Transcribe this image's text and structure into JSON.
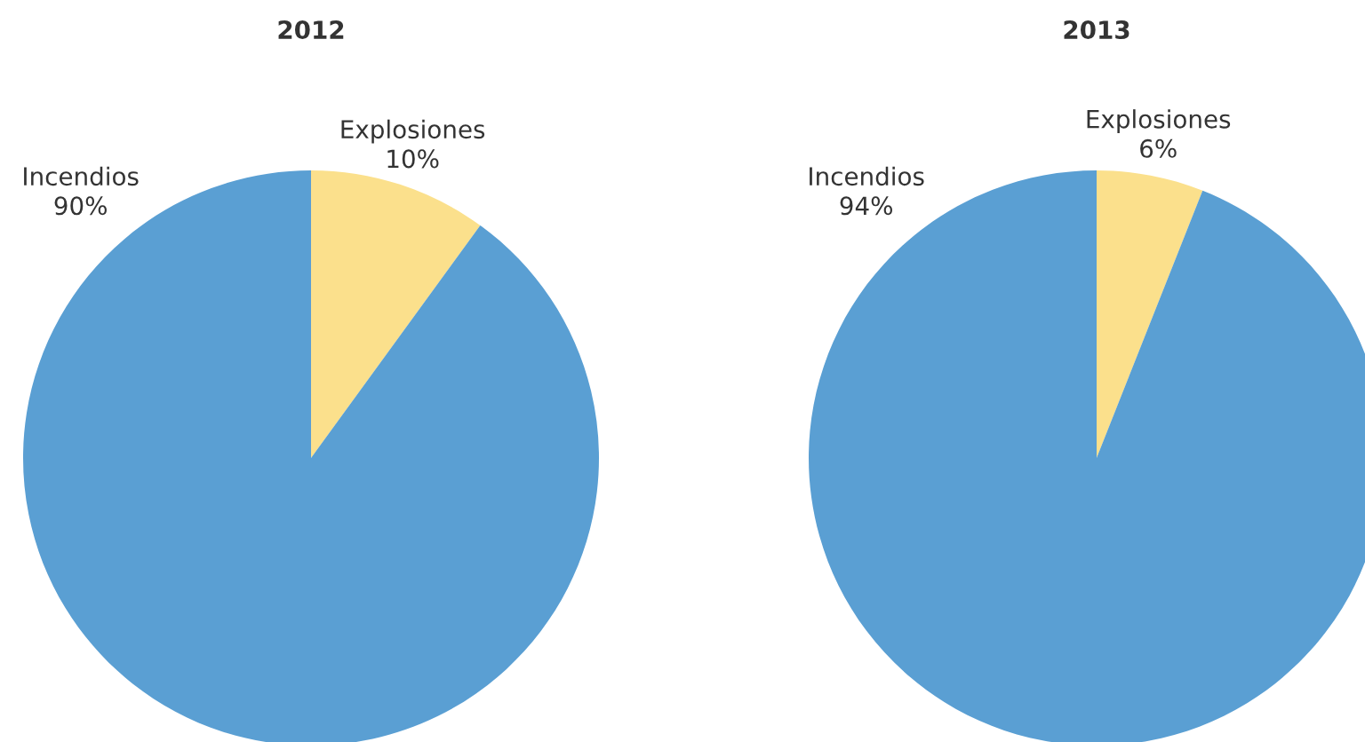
{
  "chart_data": [
    {
      "type": "pie",
      "title": "2012",
      "categories": [
        "Explosiones",
        "Incendios"
      ],
      "values": [
        10,
        90
      ],
      "colors": [
        "#fbe08c",
        "#5a9fd3"
      ],
      "value_labels": [
        "10%",
        "90%"
      ]
    },
    {
      "type": "pie",
      "title": "2013",
      "categories": [
        "Explosiones",
        "Incendios"
      ],
      "values": [
        6,
        94
      ],
      "colors": [
        "#fbe08c",
        "#5a9fd3"
      ],
      "value_labels": [
        "6%",
        "94%"
      ]
    }
  ]
}
